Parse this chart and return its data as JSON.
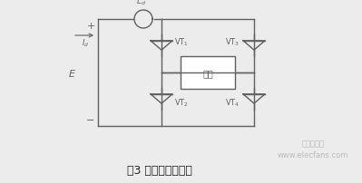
{
  "bg_color": "#ececec",
  "line_color": "#606060",
  "title_text": "图3 电流源型逆变器",
  "title_fontsize": 9,
  "wm_line1": "电子发烧友",
  "wm_line2": "www.elecfans.com",
  "wm_fontsize": 6,
  "wm_color": "#bbbbbb",
  "plus_minus_color": "#606060",
  "E_color": "#606060"
}
